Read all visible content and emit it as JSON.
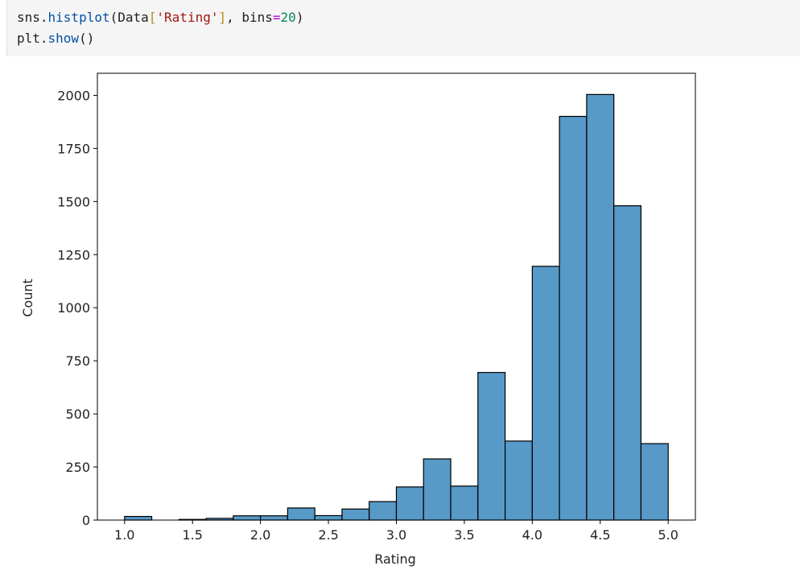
{
  "code": {
    "lines": [
      [
        "sns.",
        "histplot",
        "(Data",
        "[",
        "'Rating'",
        "]",
        ", bins",
        "=",
        "20",
        ")"
      ],
      [
        "plt.",
        "show",
        "()"
      ]
    ]
  },
  "chart_data": {
    "type": "histogram",
    "x_label": "Rating",
    "y_label": "Count",
    "bins": [
      1.0,
      1.2,
      1.4,
      1.6,
      1.8,
      2.0,
      2.2,
      2.4,
      2.6,
      2.8,
      3.0,
      3.2,
      3.4,
      3.6,
      3.8,
      4.0,
      4.2,
      4.4,
      4.6,
      4.8,
      5.0
    ],
    "values": [
      17,
      0,
      3,
      8,
      20,
      20,
      57,
      21,
      52,
      87,
      156,
      288,
      160,
      695,
      372,
      1195,
      1901,
      2004,
      1480,
      360
    ],
    "color": "#5799c7",
    "edge_color": "#000000",
    "xlim": [
      0.8,
      5.2
    ],
    "xticks": [
      {
        "value": 1,
        "label": "1.0"
      },
      {
        "value": 1.5,
        "label": "1.5"
      },
      {
        "value": 2,
        "label": "2.0"
      },
      {
        "value": 2.5,
        "label": "2.5"
      },
      {
        "value": 3,
        "label": "3.0"
      },
      {
        "value": 3.5,
        "label": "3.5"
      },
      {
        "value": 4,
        "label": "4.0"
      },
      {
        "value": 4.5,
        "label": "4.5"
      },
      {
        "value": 5,
        "label": "5.0"
      }
    ],
    "ylim": [
      0,
      2104
    ],
    "yticks": [
      0,
      250,
      500,
      750,
      1000,
      1250,
      1500,
      1750,
      2000
    ]
  }
}
